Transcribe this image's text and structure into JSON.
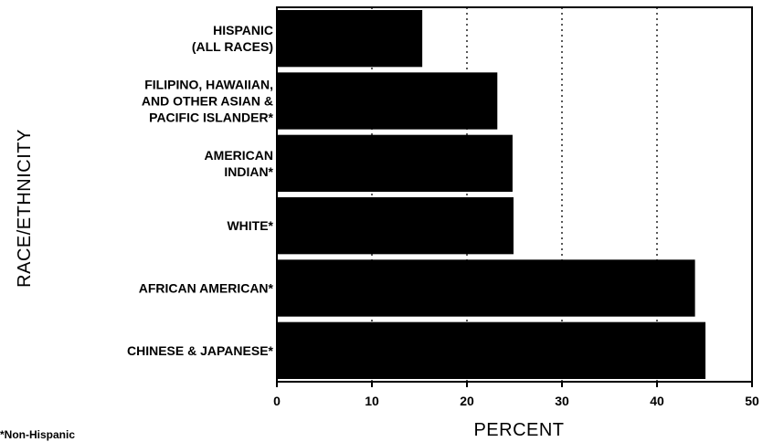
{
  "chart_data": {
    "type": "bar",
    "orientation": "horizontal",
    "categories": [
      [
        "HISPANIC",
        "(ALL RACES)"
      ],
      [
        "FILIPINO, HAWAIIAN,",
        "AND OTHER ASIAN &",
        "PACIFIC ISLANDER*"
      ],
      [
        "AMERICAN",
        "INDIAN*"
      ],
      [
        "WHITE*"
      ],
      [
        "AFRICAN AMERICAN*"
      ],
      [
        "CHINESE & JAPANESE*"
      ]
    ],
    "values": [
      15.3,
      23.2,
      24.8,
      24.9,
      44.0,
      45.1
    ],
    "xlabel": "PERCENT",
    "ylabel": "RACE/ETHNICITY",
    "xlim": [
      0,
      50
    ],
    "xticks": [
      0,
      10,
      20,
      30,
      40,
      50
    ],
    "grid": "vertical dotted",
    "bar_color": "#000000"
  },
  "footnote": "*Non-Hispanic"
}
